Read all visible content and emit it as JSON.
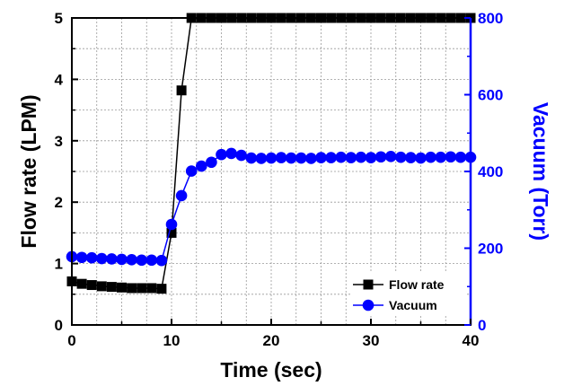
{
  "chart_data": {
    "type": "line",
    "xlabel": "Time (sec)",
    "ylabel": "Flow rate (LPM)",
    "y2label": "Vacuum (Torr)",
    "xlim": [
      0,
      40
    ],
    "ylim": [
      0,
      5
    ],
    "y2lim": [
      0,
      800
    ],
    "x_ticks": [
      "0",
      "10",
      "20",
      "30",
      "40"
    ],
    "y_ticks": [
      "0",
      "1",
      "2",
      "3",
      "4",
      "5"
    ],
    "y2_ticks": [
      "0",
      "200",
      "400",
      "600",
      "800"
    ],
    "grid": true,
    "legend_position": "bottom-right",
    "colors": {
      "flow": "#000000",
      "vacuum": "#0000ff",
      "grid": "#999999"
    },
    "series": [
      {
        "name": "Flow rate",
        "axis": "left",
        "marker": "square",
        "color": "#000000",
        "points": [
          [
            0,
            0.71
          ],
          [
            1,
            0.67
          ],
          [
            2,
            0.65
          ],
          [
            3,
            0.63
          ],
          [
            4,
            0.62
          ],
          [
            5,
            0.61
          ],
          [
            6,
            0.6
          ],
          [
            7,
            0.6
          ],
          [
            8,
            0.6
          ],
          [
            9,
            0.59
          ],
          [
            10,
            1.5
          ],
          [
            11,
            3.82
          ],
          [
            12,
            5
          ],
          [
            13,
            5
          ],
          [
            14,
            5
          ],
          [
            15,
            5
          ],
          [
            16,
            5
          ],
          [
            17,
            5
          ],
          [
            18,
            5
          ],
          [
            19,
            5
          ],
          [
            20,
            5
          ],
          [
            21,
            5
          ],
          [
            22,
            5
          ],
          [
            23,
            5
          ],
          [
            24,
            5
          ],
          [
            25,
            5
          ],
          [
            26,
            5
          ],
          [
            27,
            5
          ],
          [
            28,
            5
          ],
          [
            29,
            5
          ],
          [
            30,
            5
          ],
          [
            31,
            5
          ],
          [
            32,
            5
          ],
          [
            33,
            5
          ],
          [
            34,
            5
          ],
          [
            35,
            5
          ],
          [
            36,
            5
          ],
          [
            37,
            5
          ],
          [
            38,
            5
          ],
          [
            39,
            5
          ],
          [
            40,
            5
          ]
        ]
      },
      {
        "name": "Vacuum",
        "axis": "right",
        "marker": "circle",
        "color": "#0000ff",
        "points": [
          [
            0,
            178
          ],
          [
            1,
            176
          ],
          [
            2,
            175
          ],
          [
            3,
            173
          ],
          [
            4,
            172
          ],
          [
            5,
            171
          ],
          [
            6,
            170
          ],
          [
            7,
            169
          ],
          [
            8,
            169
          ],
          [
            9,
            168
          ],
          [
            10,
            262
          ],
          [
            11,
            337
          ],
          [
            12,
            401
          ],
          [
            13,
            414
          ],
          [
            14,
            424
          ],
          [
            15,
            444
          ],
          [
            16,
            447
          ],
          [
            17,
            442
          ],
          [
            18,
            435
          ],
          [
            19,
            434
          ],
          [
            20,
            435
          ],
          [
            21,
            436
          ],
          [
            22,
            435
          ],
          [
            23,
            435
          ],
          [
            24,
            434
          ],
          [
            25,
            436
          ],
          [
            26,
            436
          ],
          [
            27,
            437
          ],
          [
            28,
            436
          ],
          [
            29,
            437
          ],
          [
            30,
            436
          ],
          [
            31,
            438
          ],
          [
            32,
            439
          ],
          [
            33,
            437
          ],
          [
            34,
            436
          ],
          [
            35,
            435
          ],
          [
            36,
            437
          ],
          [
            37,
            437
          ],
          [
            38,
            438
          ],
          [
            39,
            437
          ],
          [
            40,
            437
          ]
        ]
      }
    ]
  }
}
